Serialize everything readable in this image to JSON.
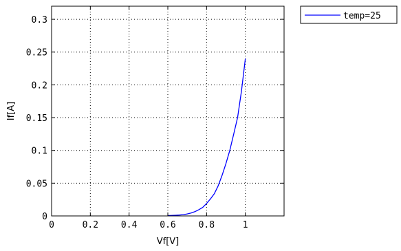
{
  "chart_data": {
    "type": "line",
    "title": "",
    "xlabel": "Vf[V]",
    "ylabel": "If[A]",
    "xlim": [
      0,
      1.2
    ],
    "ylim": [
      0,
      0.32
    ],
    "x_ticks": [
      0,
      0.2,
      0.4,
      0.6,
      0.8,
      1
    ],
    "x_tick_labels": [
      "0",
      "0.2",
      "0.4",
      "0.6",
      "0.8",
      "1"
    ],
    "y_ticks": [
      0,
      0.05,
      0.1,
      0.15,
      0.2,
      0.25,
      0.3
    ],
    "y_tick_labels": [
      "0",
      "0.05",
      "0.1",
      "0.15",
      "0.2",
      "0.25",
      "0.3"
    ],
    "grid": true,
    "grid_style": "dotted",
    "legend_position": "outside-top-right",
    "series": [
      {
        "name": "temp=25",
        "color": "#0000ff",
        "x": [
          0.6,
          0.62,
          0.64,
          0.66,
          0.68,
          0.7,
          0.72,
          0.74,
          0.76,
          0.78,
          0.8,
          0.82,
          0.84,
          0.86,
          0.88,
          0.9,
          0.92,
          0.94,
          0.96,
          0.98,
          1.0
        ],
        "y": [
          0.0005,
          0.0007,
          0.001,
          0.0014,
          0.002,
          0.003,
          0.0045,
          0.0065,
          0.0095,
          0.013,
          0.019,
          0.026,
          0.034,
          0.046,
          0.062,
          0.08,
          0.1,
          0.125,
          0.15,
          0.19,
          0.24
        ]
      }
    ]
  }
}
